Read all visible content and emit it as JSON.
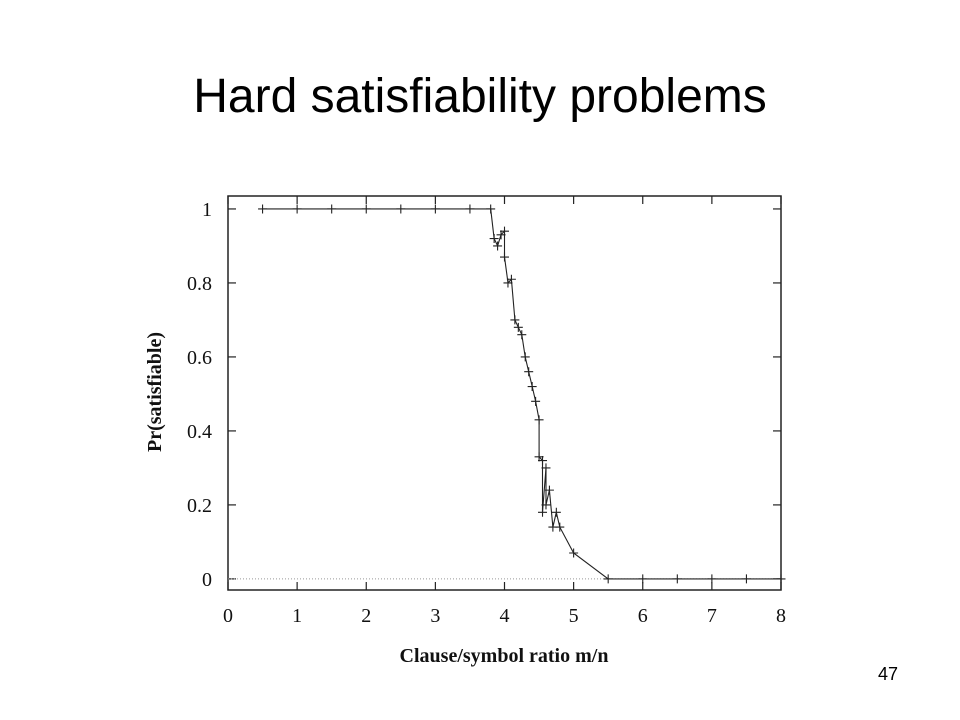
{
  "slide_title": "Hard satisfiability problems",
  "slide_number": "47",
  "chart_data": {
    "type": "line",
    "x_label": "Clause/symbol ratio m/n",
    "y_label": "Pr(satisfiable)",
    "x": [
      0.5,
      1,
      1.5,
      2,
      2.5,
      3,
      3.5,
      3.8,
      3.85,
      3.9,
      3.95,
      4.0,
      4.0,
      4.05,
      4.1,
      4.15,
      4.2,
      4.25,
      4.3,
      4.35,
      4.4,
      4.45,
      4.5,
      4.5,
      4.55,
      4.55,
      4.6,
      4.6,
      4.65,
      4.7,
      4.75,
      4.8,
      5.0,
      5.5,
      6,
      6.5,
      7,
      7.5,
      8
    ],
    "series": [
      {
        "name": "Pr(satisfiable)",
        "color": "#222222",
        "values": [
          1,
          1,
          1,
          1,
          1,
          1,
          1,
          1,
          0.92,
          0.9,
          0.93,
          0.94,
          0.87,
          0.8,
          0.81,
          0.7,
          0.68,
          0.66,
          0.6,
          0.56,
          0.52,
          0.48,
          0.43,
          0.33,
          0.32,
          0.18,
          0.3,
          0.2,
          0.24,
          0.14,
          0.18,
          0.14,
          0.07,
          0,
          0,
          0,
          0,
          0,
          0
        ]
      }
    ],
    "xlim": [
      0,
      8
    ],
    "ylim": [
      -0.03,
      1.035
    ],
    "xticks": [
      0,
      1,
      2,
      3,
      4,
      5,
      6,
      7,
      8
    ],
    "yticks": [
      0,
      0.2,
      0.4,
      0.6,
      0.8,
      1
    ],
    "zero_line": true,
    "marker": "plus"
  }
}
